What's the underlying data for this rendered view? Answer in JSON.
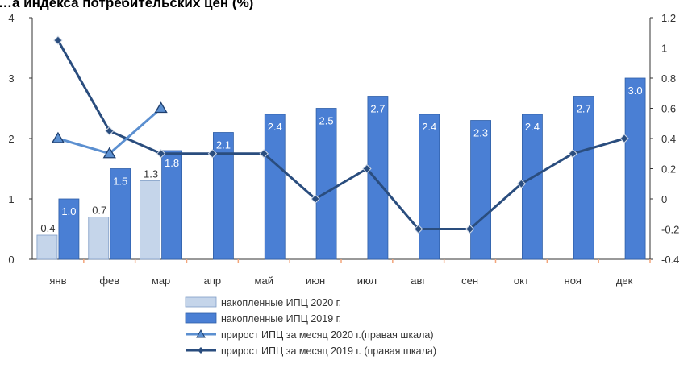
{
  "title": "…а индекса потребительских цен (%)",
  "colors": {
    "bar2020": "#c5d5ea",
    "bar2020_stroke": "#7f9dc6",
    "bar2019": "#4a7fd4",
    "bar2019_stroke": "#2f5fa8",
    "line2020": "#5b8fd0",
    "line2019": "#2a4d7e",
    "axis": "#333333",
    "tick_mark": "#f2a57a"
  },
  "chart_data": {
    "type": "bar",
    "categories": [
      "янв",
      "фев",
      "мар",
      "апр",
      "май",
      "июн",
      "июл",
      "авг",
      "сен",
      "окт",
      "ноя",
      "дек"
    ],
    "ylim_left": [
      0,
      4
    ],
    "yticks_left": [
      "0",
      "1",
      "2",
      "3",
      "4"
    ],
    "ylim_right": [
      -0.4,
      1.2
    ],
    "yticks_right": [
      "-0.4",
      "-0.2",
      "0",
      "0.2",
      "0.4",
      "0.6",
      "0.8",
      "1",
      "1.2"
    ],
    "grid": false,
    "legend_position": "bottom",
    "series": [
      {
        "name": "накопленные ИПЦ 2020 г.",
        "kind": "bar",
        "axis": "left",
        "values": [
          0.4,
          0.7,
          1.3,
          null,
          null,
          null,
          null,
          null,
          null,
          null,
          null,
          null
        ],
        "labels": [
          "0.4",
          "0.7",
          "1.3"
        ]
      },
      {
        "name": "накопленные ИПЦ 2019 г.",
        "kind": "bar",
        "axis": "left",
        "values": [
          1.0,
          1.5,
          1.8,
          2.1,
          2.4,
          2.5,
          2.7,
          2.4,
          2.3,
          2.4,
          2.7,
          3.0
        ],
        "labels": [
          "1.0",
          "1.5",
          "1.8",
          "2.1",
          "2.4",
          "2.5",
          "2.7",
          "2.4",
          "2.3",
          "2.4",
          "2.7",
          "3.0"
        ]
      },
      {
        "name": "прирост ИПЦ за месяц 2020 г.(правая шкала)",
        "kind": "line",
        "marker": "triangle",
        "axis": "right",
        "values": [
          0.4,
          0.3,
          0.6,
          null,
          null,
          null,
          null,
          null,
          null,
          null,
          null,
          null
        ]
      },
      {
        "name": "прирост ИПЦ за месяц 2019 г. (правая шкала)",
        "kind": "line",
        "marker": "diamond",
        "axis": "right",
        "values": [
          1.05,
          0.45,
          0.3,
          0.3,
          0.3,
          0.0,
          0.2,
          -0.2,
          -0.2,
          0.1,
          0.3,
          0.4
        ]
      }
    ]
  }
}
